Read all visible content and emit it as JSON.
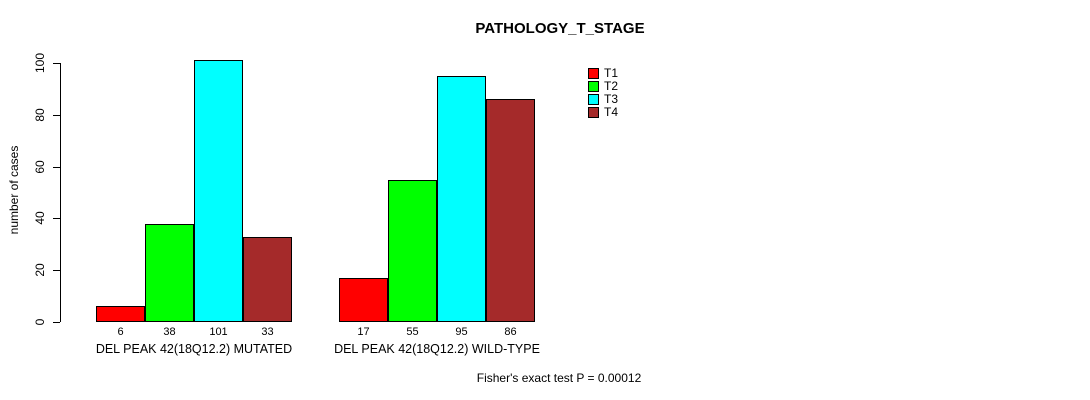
{
  "chart_data": {
    "type": "bar",
    "title": "PATHOLOGY_T_STAGE",
    "ylabel": "number of cases",
    "ylim": [
      0,
      100
    ],
    "yticks": [
      0,
      20,
      40,
      60,
      80,
      100
    ],
    "grid": false,
    "legend_position": "right",
    "categories": [
      "T1",
      "T2",
      "T3",
      "T4"
    ],
    "colors": [
      "#FF0000",
      "#00FF00",
      "#00FFFF",
      "#A52A2A"
    ],
    "groups": [
      {
        "label": "DEL PEAK 42(18Q12.2) MUTATED",
        "values": [
          6,
          38,
          101,
          33
        ]
      },
      {
        "label": "DEL PEAK 42(18Q12.2) WILD-TYPE",
        "values": [
          17,
          55,
          95,
          86
        ]
      }
    ],
    "bar_value_labels": true,
    "annotation": "Fisher's exact test P = 0.00012"
  }
}
